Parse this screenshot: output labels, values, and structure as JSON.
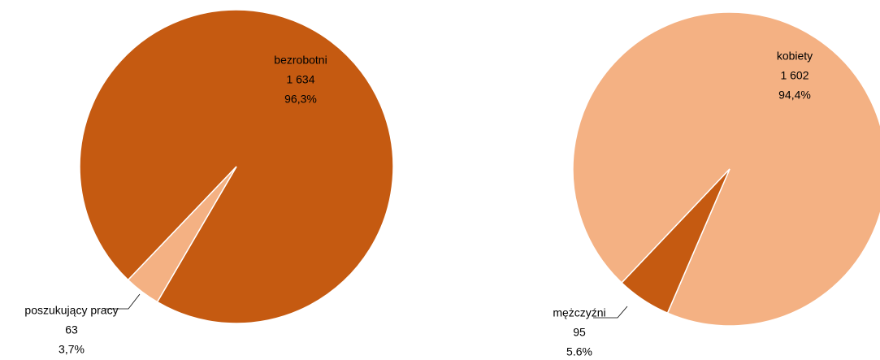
{
  "chart_data": [
    {
      "type": "pie",
      "categories": [
        "bezrobotni",
        "poszukujący pracy"
      ],
      "values": [
        1634,
        63
      ],
      "value_labels": [
        "1 634",
        "63"
      ],
      "percentages": [
        96.3,
        3.7
      ],
      "percentage_labels": [
        "96,3%",
        "3,7%"
      ],
      "colors": [
        "#c55a11",
        "#f4b183"
      ]
    },
    {
      "type": "pie",
      "categories": [
        "kobiety",
        "mężczyźni"
      ],
      "values": [
        1602,
        95
      ],
      "value_labels": [
        "1 602",
        "95"
      ],
      "percentages": [
        94.4,
        5.6
      ],
      "percentage_labels": [
        "94,4%",
        "5.6%"
      ],
      "colors": [
        "#f4b183",
        "#c55a11"
      ]
    }
  ]
}
